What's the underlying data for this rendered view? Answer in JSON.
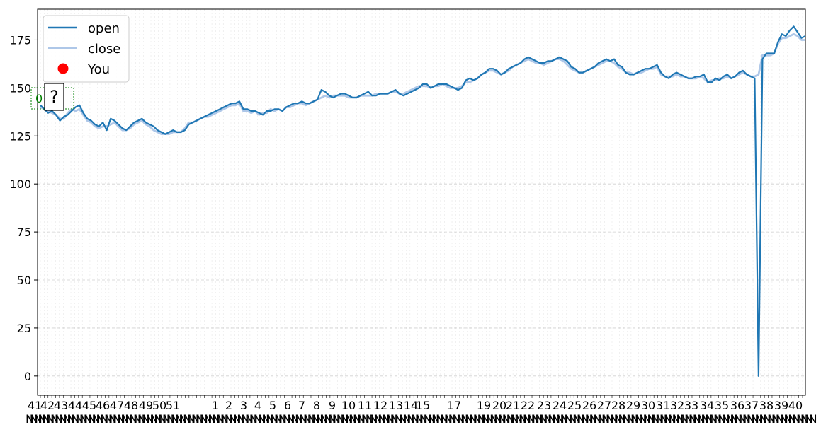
{
  "chart_data": {
    "type": "line",
    "ylim": [
      -10,
      191
    ],
    "yticks": [
      0,
      25,
      50,
      75,
      100,
      125,
      150,
      175
    ],
    "grid": true,
    "legend_placement": "upper-left",
    "colors": {
      "open": "#1f77b4",
      "close": "#aec7e8",
      "you": "#ff0000",
      "badge": "#008000"
    },
    "series": [
      {
        "name": "open",
        "values": [
          141,
          139,
          137,
          138,
          136,
          133,
          135,
          136,
          138,
          140,
          141,
          137,
          134,
          133,
          131,
          130,
          132,
          128,
          134,
          133,
          131,
          129,
          128,
          130,
          132,
          133,
          134,
          132,
          131,
          130,
          128,
          127,
          126,
          127,
          128,
          127,
          127,
          128,
          131,
          132,
          133,
          134,
          135,
          136,
          137,
          138,
          139,
          140,
          141,
          142,
          142,
          143,
          139,
          139,
          138,
          138,
          137,
          136,
          138,
          138,
          139,
          139,
          138,
          140,
          141,
          142,
          142,
          143,
          142,
          142,
          143,
          144,
          149,
          148,
          146,
          145,
          146,
          147,
          147,
          146,
          145,
          145,
          146,
          147,
          148,
          146,
          146,
          147,
          147,
          147,
          148,
          149,
          147,
          146,
          147,
          148,
          149,
          150,
          152,
          152,
          150,
          151,
          152,
          152,
          152,
          151,
          150,
          149,
          150,
          154,
          155,
          154,
          155,
          157,
          158,
          160,
          160,
          159,
          157,
          158,
          160,
          161,
          162,
          163,
          165,
          166,
          165,
          164,
          163,
          163,
          164,
          164,
          165,
          166,
          165,
          164,
          161,
          160,
          158,
          158,
          159,
          160,
          161,
          163,
          164,
          165,
          164,
          165,
          162,
          161,
          158,
          157,
          157,
          158,
          159,
          160,
          160,
          161,
          162,
          158,
          156,
          155,
          157,
          158,
          157,
          156,
          155,
          155,
          156,
          156,
          157,
          153,
          153,
          155,
          154,
          156,
          157,
          155,
          156,
          158,
          159,
          157,
          156,
          155,
          0,
          165,
          168,
          168,
          168,
          174,
          178,
          177,
          180,
          182,
          179,
          176,
          177
        ],
        "color": "#1f77b4"
      },
      {
        "name": "close",
        "values": [
          140,
          139,
          138,
          137,
          136,
          134,
          134,
          137,
          139,
          138,
          139,
          136,
          133,
          132,
          130,
          129,
          130,
          130,
          131,
          132,
          130,
          128,
          128,
          129,
          131,
          132,
          133,
          131,
          130,
          128,
          127,
          126,
          126,
          126,
          127,
          127,
          127,
          129,
          132,
          132,
          133,
          134,
          135,
          135,
          136,
          137,
          138,
          139,
          140,
          141,
          141,
          142,
          138,
          138,
          137,
          138,
          136,
          137,
          137,
          139,
          138,
          139,
          138,
          140,
          140,
          141,
          142,
          142,
          141,
          142,
          143,
          144,
          145,
          146,
          145,
          146,
          146,
          146,
          146,
          145,
          145,
          145,
          146,
          146,
          146,
          146,
          147,
          147,
          147,
          147,
          148,
          148,
          147,
          147,
          148,
          149,
          150,
          151,
          151,
          151,
          150,
          151,
          151,
          152,
          151,
          150,
          150,
          150,
          151,
          153,
          153,
          154,
          155,
          157,
          158,
          159,
          159,
          158,
          157,
          158,
          159,
          161,
          162,
          163,
          164,
          165,
          164,
          163,
          163,
          162,
          163,
          164,
          165,
          165,
          164,
          162,
          160,
          159,
          158,
          158,
          159,
          160,
          161,
          162,
          163,
          164,
          164,
          163,
          161,
          160,
          158,
          158,
          157,
          158,
          158,
          159,
          160,
          160,
          161,
          157,
          156,
          156,
          156,
          157,
          156,
          156,
          155,
          155,
          155,
          156,
          155,
          153,
          154,
          154,
          155,
          155,
          156,
          155,
          156,
          157,
          158,
          157,
          156,
          156,
          157,
          167,
          167,
          167,
          168,
          173,
          176,
          176,
          177,
          178,
          177,
          175,
          175
        ],
        "color": "#aec7e8"
      }
    ],
    "x_tick_labels": [
      "41",
      "42",
      "43",
      "44",
      "45",
      "46",
      "47",
      "48",
      "49",
      "50",
      "51",
      "1",
      "2",
      "3",
      "4",
      "5",
      "6",
      "7",
      "8",
      "9",
      "10",
      "11",
      "12",
      "13",
      "14",
      "15",
      "17",
      "19",
      "20",
      "21",
      "22",
      "23",
      "24",
      "25",
      "26",
      "27",
      "28",
      "29",
      "30",
      "31",
      "32",
      "33",
      "34",
      "35",
      "36",
      "37",
      "38",
      "39",
      "40"
    ],
    "legend": [
      "open",
      "close",
      "You"
    ],
    "badge_text": "0 %",
    "badge_marker": "?",
    "overflow_glyph": "N"
  }
}
